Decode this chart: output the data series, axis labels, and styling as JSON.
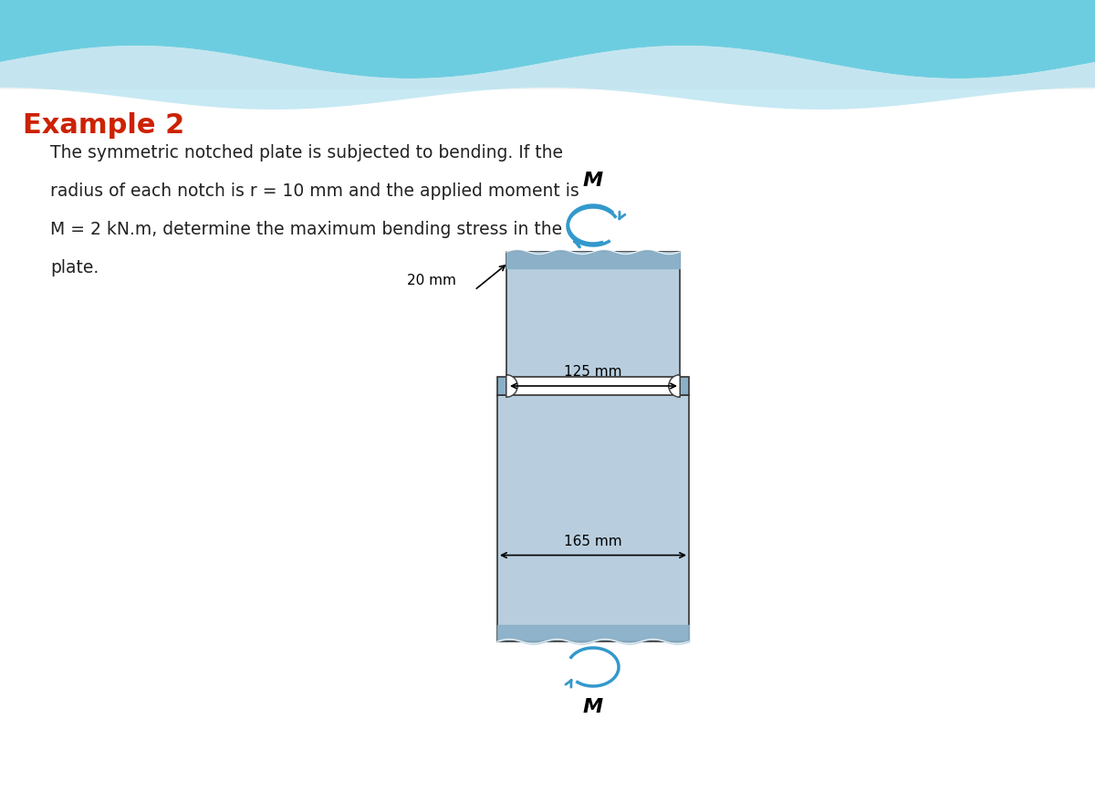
{
  "bg_color": "#f0f0f0",
  "header_wave_color1": "#5bc8d8",
  "header_wave_color2": "#a8dde8",
  "title": "Example 2",
  "title_color": "#cc2200",
  "body_text": "The symmetric notched plate is subjected to bending. If the\nradius of each notch is r = 10 mm and the applied moment is\nM = 2 kN.m, determine the maximum bending stress in the\nplate.",
  "body_text_color": "#222222",
  "plate_color_light": "#aec6d8",
  "plate_color_dark": "#7a9ab5",
  "plate_color_mid": "#c8d8e8",
  "plate_outline": "#333333",
  "arrow_color": "#3399cc",
  "dim_color": "#111111",
  "label_20mm": "20 mm",
  "label_125mm": "125 mm",
  "label_165mm": "165 mm",
  "label_M_top": "M",
  "label_M_bot": "M"
}
